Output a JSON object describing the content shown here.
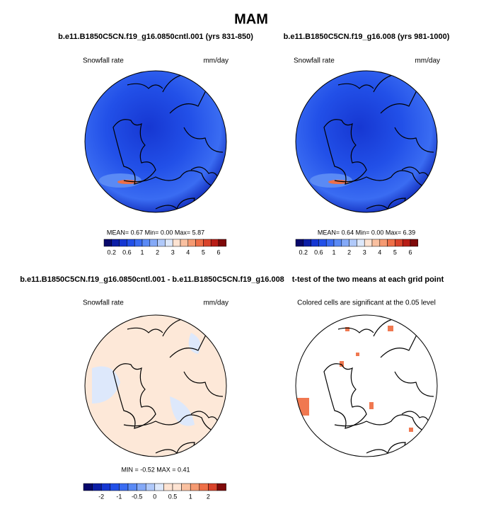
{
  "title": "MAM",
  "panels": [
    {
      "title": "b.e11.B1850C5CN.f19_g16.0850cntl.001 (yrs 831-850)",
      "left_label": "Snowfall rate",
      "right_label": "mm/day",
      "stats": "MEAN=  0.67  Min=  0.00  Max=  5.87"
    },
    {
      "title": "b.e11.B1850C5CN.f19_g16.008 (yrs 981-1000)",
      "left_label": "Snowfall rate",
      "right_label": "mm/day",
      "stats": "MEAN=  0.64  Min=  0.00  Max=  6.39"
    },
    {
      "title": "b.e11.B1850C5CN.f19_g16.0850cntl.001 - b.e11.B1850C5CN.f19_g16.008",
      "left_label": "Snowfall rate",
      "right_label": "mm/day",
      "stats": "MIN =  -0.52 MAX =  0.41"
    },
    {
      "title": "t-test of the two means at each grid point",
      "left_label": "Colored cells are significant at the 0.05 level"
    }
  ],
  "colorbars": [
    {
      "colors": [
        "#08086b",
        "#0c1ea6",
        "#1637d2",
        "#2250e8",
        "#3a6cf2",
        "#5a8af5",
        "#84a9f7",
        "#b0c9fa",
        "#dde8fb",
        "#fde3d2",
        "#f9c0a0",
        "#f59a72",
        "#ee6f47",
        "#d9432a",
        "#b81d16",
        "#7f0a0a"
      ],
      "labels": [
        "0.2",
        "0.6",
        "1",
        "2",
        "3",
        "4",
        "5",
        "6"
      ]
    },
    {
      "colors": [
        "#08086b",
        "#0c1ea6",
        "#1637d2",
        "#2250e8",
        "#3a6cf2",
        "#5a8af5",
        "#84a9f7",
        "#b0c9fa",
        "#dde8fb",
        "#fde3d2",
        "#f9c0a0",
        "#f59a72",
        "#ee6f47",
        "#d9432a",
        "#b81d16",
        "#7f0a0a"
      ],
      "labels": [
        "0.2",
        "0.6",
        "1",
        "2",
        "3",
        "4",
        "5",
        "6"
      ]
    },
    {
      "colors": [
        "#08086b",
        "#0c1ea6",
        "#1637d2",
        "#2250e8",
        "#3a6cf2",
        "#5a8af5",
        "#84a9f7",
        "#b0c9fa",
        "#dde8fb",
        "#fde3d2",
        "#fde3d2",
        "#f9c0a0",
        "#f59a72",
        "#ee6f47",
        "#d9432a",
        "#7f0a0a"
      ],
      "labels": [
        "-2",
        "-1",
        "-0.5",
        "0",
        "0.5",
        "1",
        "2"
      ]
    }
  ]
}
